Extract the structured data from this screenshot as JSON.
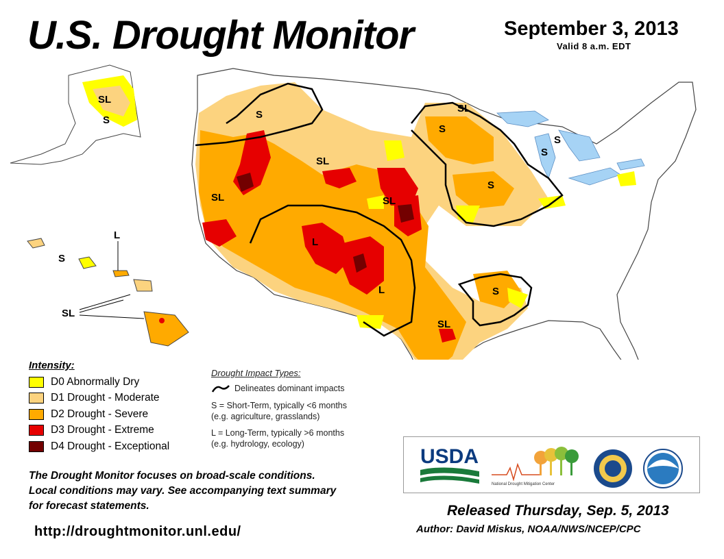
{
  "header": {
    "title": "U.S. Drought Monitor",
    "date": "September 3, 2013",
    "valid": "Valid 8 a.m. EDT"
  },
  "legend": {
    "heading": "Intensity:",
    "items": [
      {
        "label": "D0 Abnormally Dry",
        "color": "#FFFF00"
      },
      {
        "label": "D1 Drought - Moderate",
        "color": "#FCD37F"
      },
      {
        "label": "D2 Drought - Severe",
        "color": "#FFAA00"
      },
      {
        "label": "D3 Drought - Extreme",
        "color": "#E60000"
      },
      {
        "label": "D4 Drought - Exceptional",
        "color": "#730000"
      }
    ]
  },
  "impact_types": {
    "heading": "Drought Impact Types:",
    "delineates": "Delineates dominant impacts",
    "short_term": "S = Short-Term, typically <6 months",
    "short_term_eg": "(e.g. agriculture, grasslands)",
    "long_term": "L = Long-Term, typically >6 months",
    "long_term_eg": "(e.g. hydrology, ecology)"
  },
  "note": {
    "line1": "The Drought Monitor focuses on broad-scale conditions.",
    "line2": "Local conditions may vary. See accompanying text summary",
    "line3": "for forecast statements."
  },
  "url": "http://droughtmonitor.unl.edu/",
  "logos": {
    "usda": "USDA",
    "ndmc": "National Drought Mitigation Center"
  },
  "footer": {
    "released": "Released Thursday, Sep. 5, 2013",
    "author": "Author: David Miskus, NOAA/NWS/NCEP/CPC"
  },
  "map_labels": {
    "alaska_sl": "SL",
    "alaska_s": "S",
    "pnw_s": "S",
    "northern_rockies_sl": "SL",
    "california_sl": "SL",
    "hawaii_l": "L",
    "hawaii_s": "S",
    "hawaii_sl": "SL",
    "southwest_l": "L",
    "new_mexico_l": "L",
    "plains_sl": "SL",
    "texas_sl": "SL",
    "dakota_sl": "SL",
    "dakota_s": "S",
    "midwest_s": "S",
    "michigan_s1": "S",
    "michigan_s2": "S",
    "southeast_s": "S"
  }
}
